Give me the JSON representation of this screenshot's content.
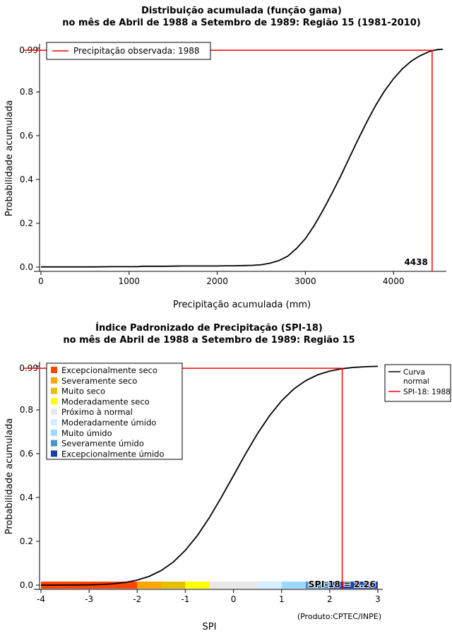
{
  "figure": {
    "background": "#ffffff",
    "curve_color": "#000000",
    "ref_color": "#ff0000"
  },
  "chart_data": [
    {
      "type": "line",
      "title": "Distribuição acumulada (função gama)",
      "subtitle": "no mês de Abril de 1988 a Setembro de 1989: Região 15 (1981-2010)",
      "xlabel": "Precipitação acumulada (mm)",
      "ylabel": "Probabilidade acumulada",
      "xlim": [
        0,
        4560
      ],
      "ylim": [
        0,
        1
      ],
      "xticks": [
        0,
        1000,
        2000,
        3000,
        4000
      ],
      "yticks": [
        0,
        0.2,
        0.4,
        0.6,
        0.8,
        1
      ],
      "ytick_labels": [
        "0.0",
        "0.2",
        "0.4",
        "0.6",
        "0.8",
        ""
      ],
      "legend": [
        {
          "label": "Precipitação observada: 1988",
          "color": "#ff0000"
        }
      ],
      "annotation": {
        "ref_probability": 0.99,
        "ref_probability_label": "0.99",
        "ref_x": 4438,
        "ref_x_label": "4438",
        "color": "#ff0000"
      },
      "series": [
        {
          "name": "Distribuição gama acumulada",
          "color": "#000000",
          "x": [
            0,
            200,
            400,
            600,
            800,
            1000,
            1100,
            1150,
            1200,
            1400,
            1600,
            1800,
            2000,
            2100,
            2200,
            2300,
            2400,
            2500,
            2600,
            2700,
            2800,
            2900,
            3000,
            3100,
            3200,
            3300,
            3400,
            3500,
            3600,
            3700,
            3800,
            3900,
            4000,
            4100,
            4200,
            4300,
            4400,
            4438,
            4500,
            4560
          ],
          "y": [
            0.001,
            0.001,
            0.001,
            0.001,
            0.002,
            0.002,
            0.002,
            0.004,
            0.004,
            0.004,
            0.005,
            0.005,
            0.005,
            0.006,
            0.006,
            0.007,
            0.008,
            0.011,
            0.018,
            0.03,
            0.05,
            0.085,
            0.13,
            0.19,
            0.26,
            0.335,
            0.415,
            0.5,
            0.585,
            0.665,
            0.74,
            0.805,
            0.86,
            0.905,
            0.94,
            0.965,
            0.983,
            0.988,
            0.993,
            0.995
          ]
        }
      ]
    },
    {
      "type": "line",
      "title": "Índice Padronizado de Precipitação (SPI-18)",
      "subtitle": "no mês de Abril de 1988 a Setembro de 1989: Região 15",
      "xlabel": "SPI",
      "ylabel": "Probabilidade acumulada",
      "footnote": "(Produto:CPTEC/INPE)",
      "xlim": [
        -4,
        3
      ],
      "ylim": [
        0,
        1
      ],
      "xticks": [
        -4,
        -3,
        -2,
        -1,
        0,
        1,
        2,
        3
      ],
      "yticks": [
        0,
        0.2,
        0.4,
        0.6,
        0.8,
        1
      ],
      "ytick_labels": [
        "0.0",
        "0.2",
        "0.4",
        "0.6",
        "0.8",
        ""
      ],
      "legend_lines": [
        {
          "label_lines": [
            "Curva",
            "normal"
          ],
          "color": "#000000"
        },
        {
          "label_lines": [
            "SPI-18: 1988"
          ],
          "color": "#ff0000"
        }
      ],
      "categories": [
        {
          "label": "Excepcionalmente seco",
          "color": "#ff4500",
          "from": -4,
          "to": -2
        },
        {
          "label": "Severamente seco",
          "color": "#ffa500",
          "from": -2,
          "to": -1.5
        },
        {
          "label": "Muito seco",
          "color": "#e6c000",
          "from": -1.5,
          "to": -1
        },
        {
          "label": "Moderadamente seco",
          "color": "#ffff00",
          "from": -1,
          "to": -0.5
        },
        {
          "label": "Próximo à normal",
          "color": "#e8e8e8",
          "from": -0.5,
          "to": 0.5
        },
        {
          "label": "Moderadamente úmido",
          "color": "#d4f0ff",
          "from": 0.5,
          "to": 1
        },
        {
          "label": "Muito úmido",
          "color": "#9cd9ff",
          "from": 1,
          "to": 1.5
        },
        {
          "label": "Severamente úmido",
          "color": "#4f94cd",
          "from": 1.5,
          "to": 2
        },
        {
          "label": "Excepcionalmente úmido",
          "color": "#1c3faa",
          "from": 2,
          "to": 3
        }
      ],
      "annotation": {
        "ref_probability": 0.99,
        "ref_probability_label": "0.99",
        "ref_x": 2.26,
        "spi_text": "SPI-18 = 2.26",
        "spi_text_color": "#00008b",
        "color": "#ff0000"
      },
      "series": [
        {
          "name": "Curva normal",
          "color": "#000000",
          "x": [
            -4,
            -3.75,
            -3.5,
            -3.25,
            -3,
            -2.75,
            -2.5,
            -2.25,
            -2,
            -1.75,
            -1.5,
            -1.25,
            -1,
            -0.75,
            -0.5,
            -0.25,
            0,
            0.25,
            0.5,
            0.75,
            1,
            1.25,
            1.5,
            1.75,
            2,
            2.25,
            2.5,
            2.75,
            3
          ],
          "y": [
            0.0,
            0.0001,
            0.0002,
            0.0006,
            0.0013,
            0.003,
            0.0062,
            0.0122,
            0.0228,
            0.0401,
            0.0668,
            0.1056,
            0.1587,
            0.2266,
            0.3085,
            0.4013,
            0.5,
            0.5987,
            0.6915,
            0.7734,
            0.8413,
            0.8944,
            0.9332,
            0.9599,
            0.9772,
            0.9878,
            0.9938,
            0.997,
            0.9987
          ]
        }
      ]
    }
  ]
}
